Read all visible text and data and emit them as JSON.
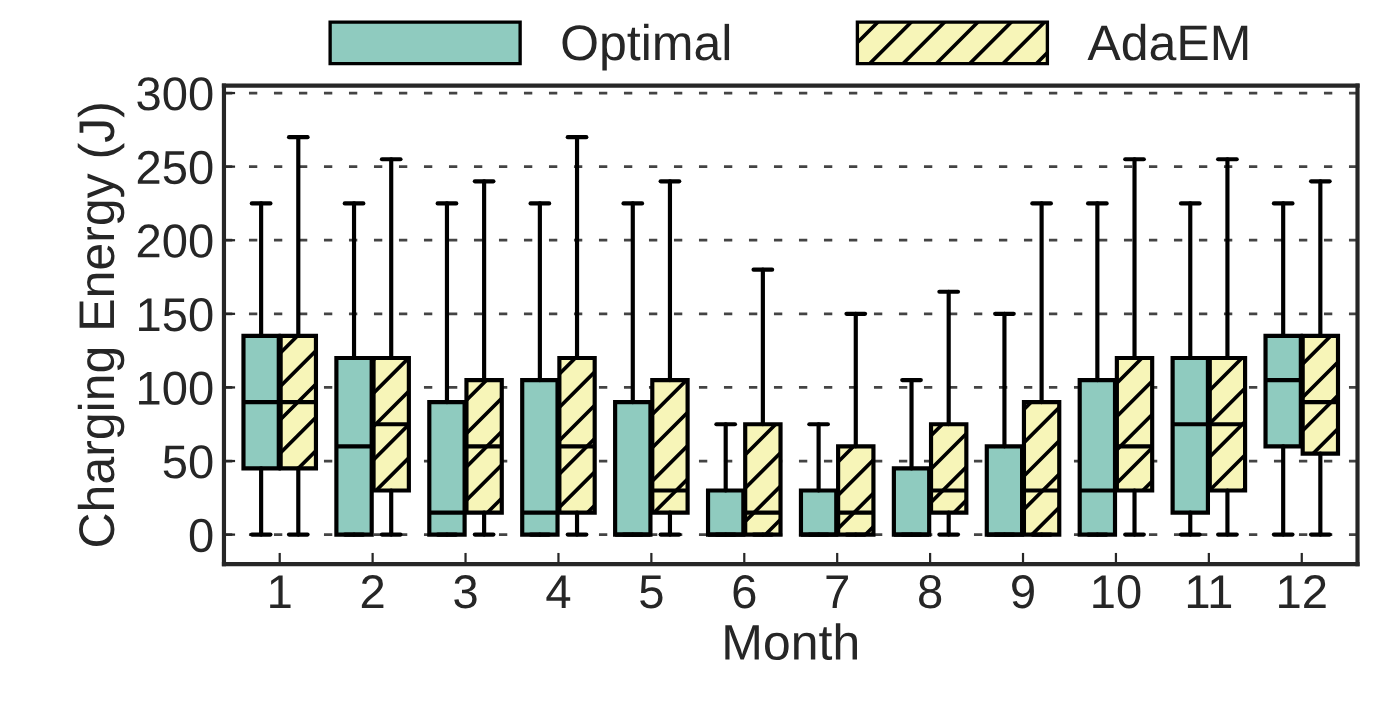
{
  "chart_data": {
    "type": "box",
    "xlabel": "Month",
    "ylabel": "Charging Energy (J)",
    "categories": [
      "1",
      "2",
      "3",
      "4",
      "5",
      "6",
      "7",
      "8",
      "9",
      "10",
      "11",
      "12"
    ],
    "ylim": [
      -20,
      305
    ],
    "yticks": [
      0,
      50,
      100,
      150,
      200,
      250,
      300
    ],
    "grid": "y",
    "legend": "top",
    "series": [
      {
        "name": "Optimal",
        "color": "#8fcbbf",
        "boxes": [
          {
            "low": 0,
            "q1": 45,
            "median": 90,
            "q3": 135,
            "high": 225
          },
          {
            "low": 0,
            "q1": 0,
            "median": 60,
            "q3": 120,
            "high": 225
          },
          {
            "low": 0,
            "q1": 0,
            "median": 15,
            "q3": 90,
            "high": 225
          },
          {
            "low": 0,
            "q1": 0,
            "median": 15,
            "q3": 105,
            "high": 225
          },
          {
            "low": 0,
            "q1": 0,
            "median": 0,
            "q3": 90,
            "high": 225
          },
          {
            "low": 0,
            "q1": 0,
            "median": 0,
            "q3": 30,
            "high": 75
          },
          {
            "low": 0,
            "q1": 0,
            "median": 0,
            "q3": 30,
            "high": 75
          },
          {
            "low": 0,
            "q1": 0,
            "median": 0,
            "q3": 45,
            "high": 105
          },
          {
            "low": 0,
            "q1": 0,
            "median": 0,
            "q3": 60,
            "high": 150
          },
          {
            "low": 0,
            "q1": 0,
            "median": 30,
            "q3": 105,
            "high": 225
          },
          {
            "low": 0,
            "q1": 15,
            "median": 75,
            "q3": 120,
            "high": 225
          },
          {
            "low": 0,
            "q1": 60,
            "median": 105,
            "q3": 135,
            "high": 225
          }
        ]
      },
      {
        "name": "AdaEM",
        "color": "#f7f5b8",
        "boxes": [
          {
            "low": 0,
            "q1": 45,
            "median": 90,
            "q3": 135,
            "high": 270
          },
          {
            "low": 0,
            "q1": 30,
            "median": 75,
            "q3": 120,
            "high": 255
          },
          {
            "low": 0,
            "q1": 15,
            "median": 60,
            "q3": 105,
            "high": 240
          },
          {
            "low": 0,
            "q1": 15,
            "median": 60,
            "q3": 120,
            "high": 270
          },
          {
            "low": 0,
            "q1": 15,
            "median": 30,
            "q3": 105,
            "high": 240
          },
          {
            "low": 0,
            "q1": 0,
            "median": 15,
            "q3": 75,
            "high": 180
          },
          {
            "low": 0,
            "q1": 0,
            "median": 15,
            "q3": 60,
            "high": 150
          },
          {
            "low": 0,
            "q1": 15,
            "median": 30,
            "q3": 75,
            "high": 165
          },
          {
            "low": 0,
            "q1": 0,
            "median": 30,
            "q3": 90,
            "high": 225
          },
          {
            "low": 0,
            "q1": 30,
            "median": 60,
            "q3": 120,
            "high": 255
          },
          {
            "low": 0,
            "q1": 30,
            "median": 75,
            "q3": 120,
            "high": 255
          },
          {
            "low": 0,
            "q1": 55,
            "median": 90,
            "q3": 135,
            "high": 240
          }
        ]
      }
    ]
  }
}
